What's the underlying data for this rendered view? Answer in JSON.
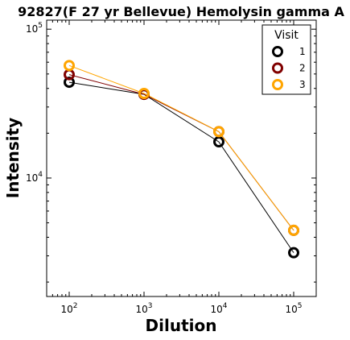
{
  "chart_data": {
    "type": "line",
    "title": "92827(F 27 yr Bellevue) Hemolysin gamma A",
    "xlabel": "Dilution",
    "ylabel": "Intensity",
    "x_scale": "log",
    "y_scale": "log",
    "xlim": [
      50,
      200000
    ],
    "ylim": [
      1600,
      115000
    ],
    "x": [
      100,
      1000,
      10000,
      100000
    ],
    "x_ticks": [
      {
        "value": 100,
        "base": "10",
        "exp": "2"
      },
      {
        "value": 1000,
        "base": "10",
        "exp": "3"
      },
      {
        "value": 10000,
        "base": "10",
        "exp": "4"
      },
      {
        "value": 100000,
        "base": "10",
        "exp": "5"
      }
    ],
    "y_ticks": [
      {
        "value": 10000,
        "base": "10",
        "exp": "4"
      },
      {
        "value": 100000,
        "base": "10",
        "exp": "5"
      }
    ],
    "legend": {
      "title": "Visit",
      "placement": "top-right"
    },
    "series": [
      {
        "name": "1",
        "color": "#000000",
        "values": [
          44000,
          36500,
          17500,
          3150
        ]
      },
      {
        "name": "2",
        "color": "#800000",
        "values": [
          49500,
          36500,
          20500,
          4450
        ]
      },
      {
        "name": "3",
        "color": "#FFA500",
        "values": [
          57000,
          37000,
          20500,
          4450
        ]
      }
    ]
  }
}
